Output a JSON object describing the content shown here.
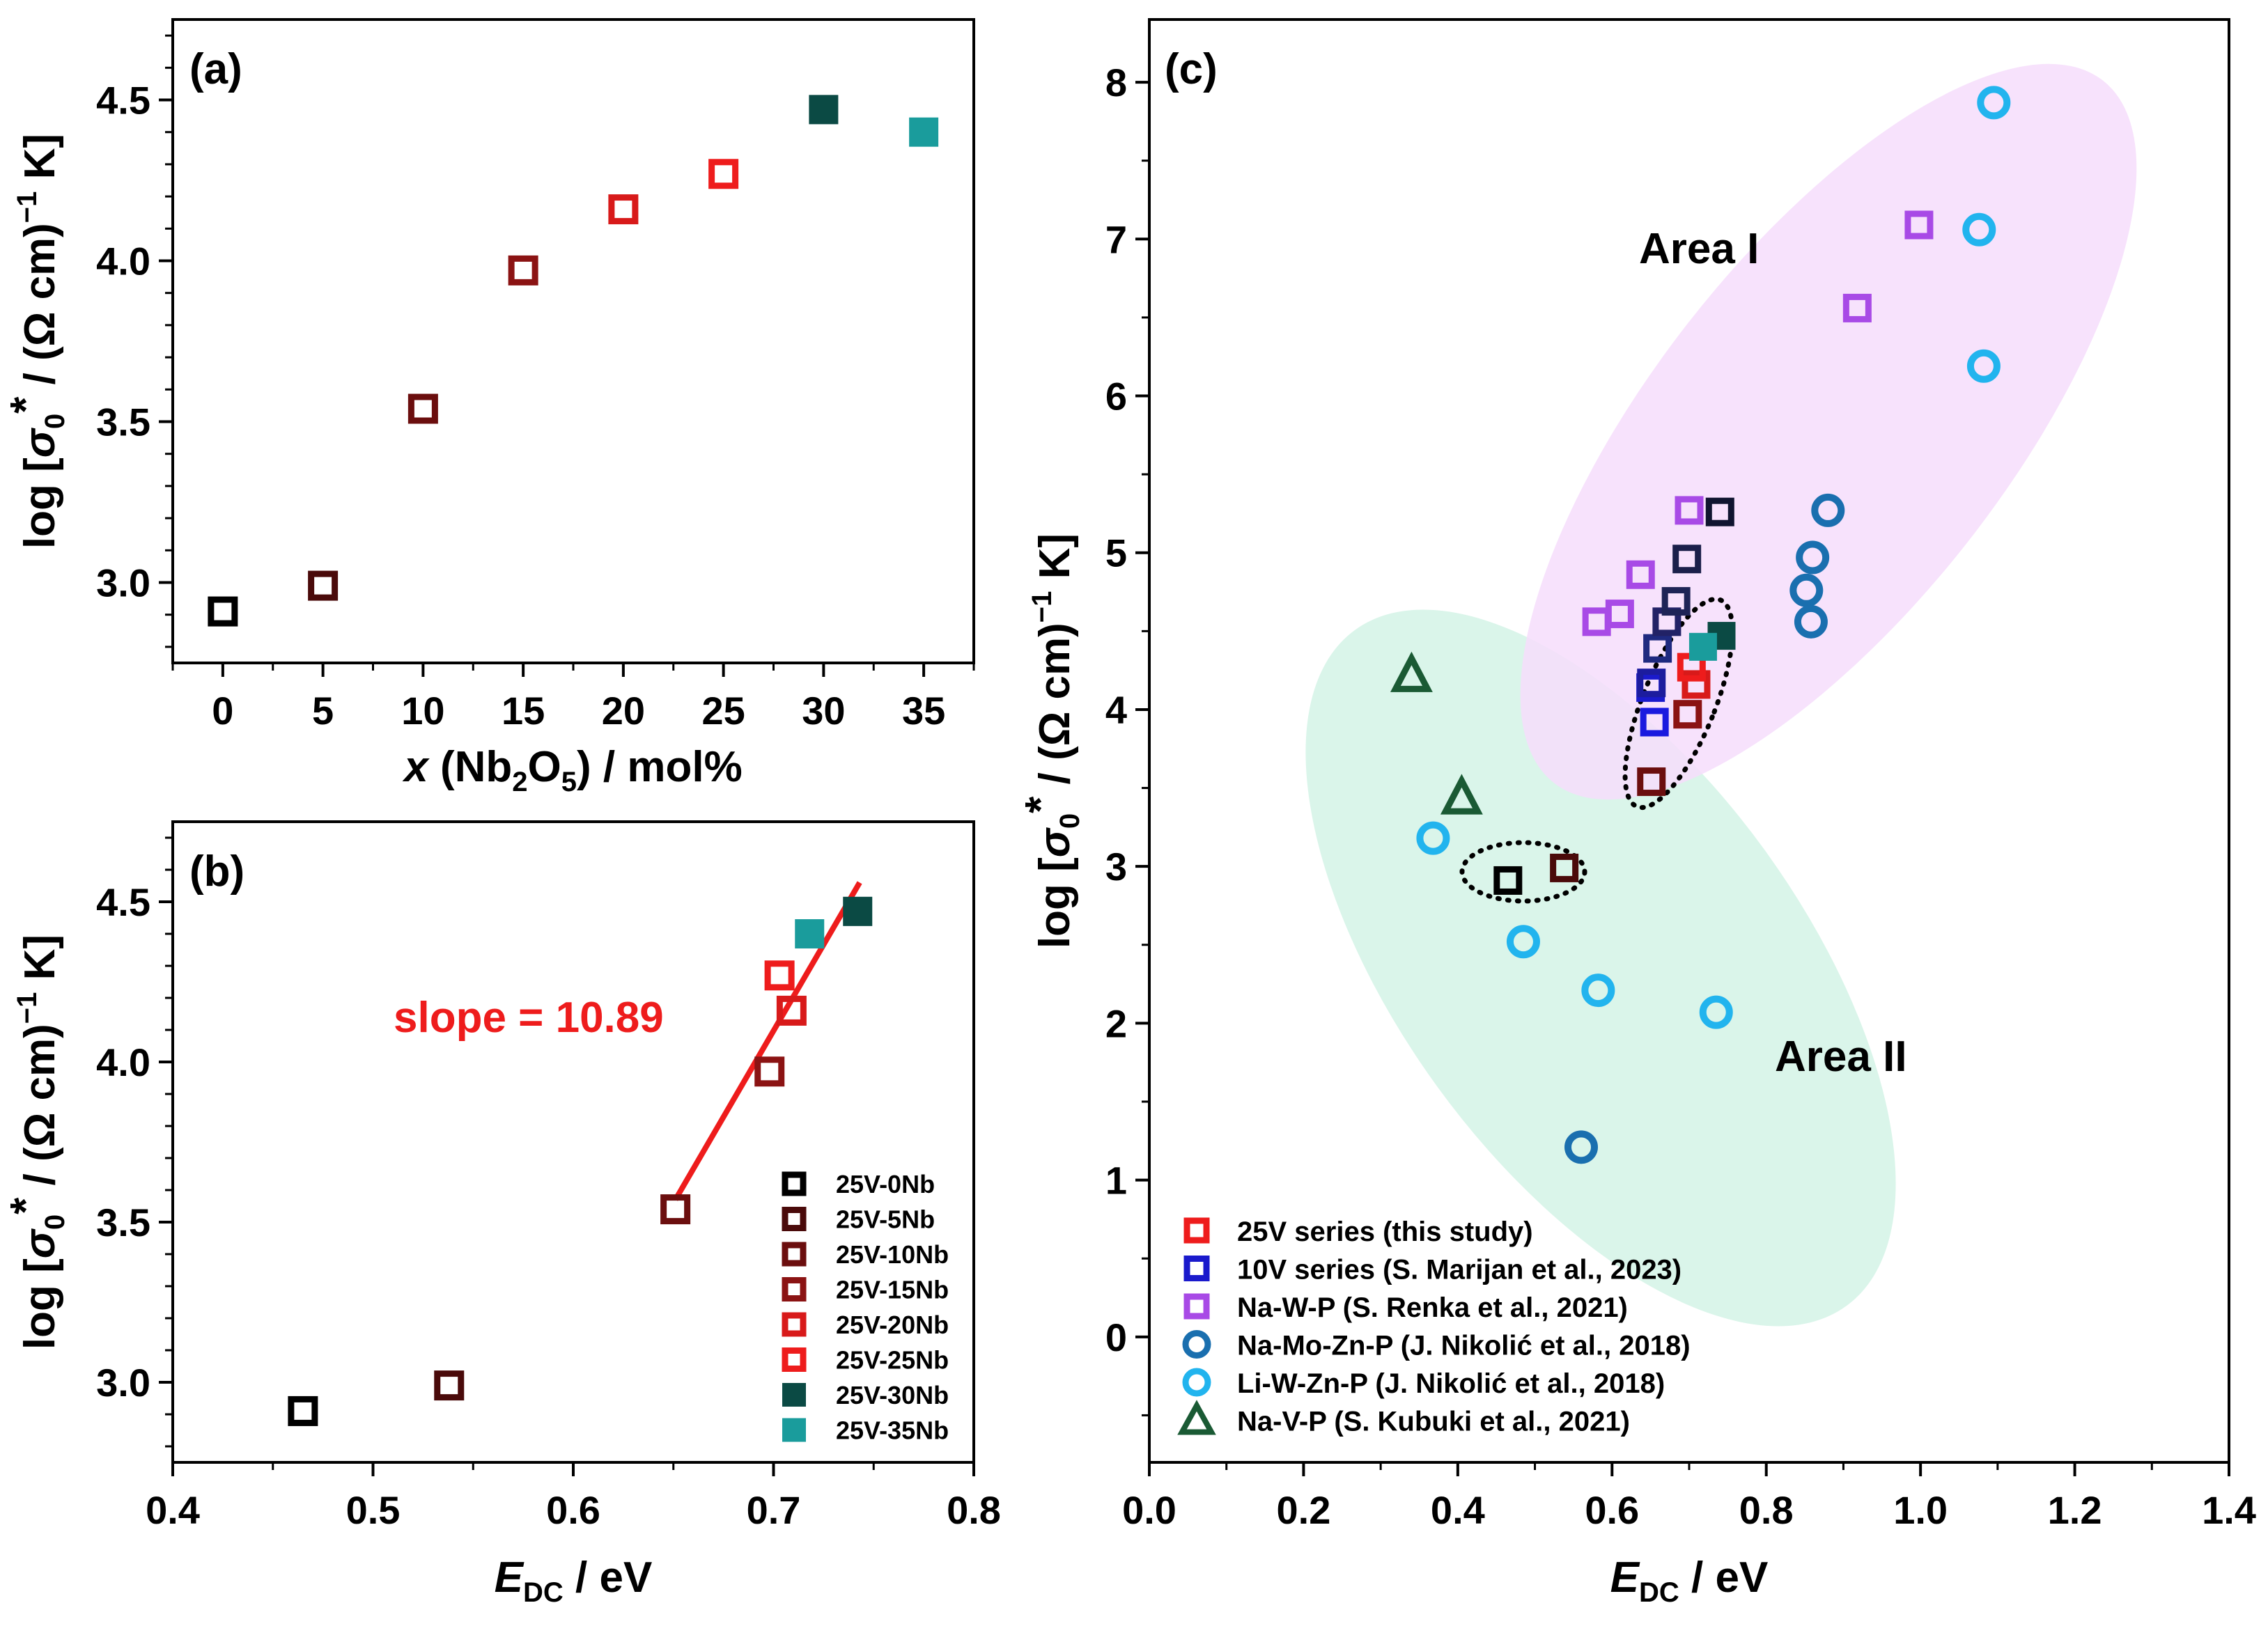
{
  "chart_data": [
    {
      "panel": "(a)",
      "type": "scatter",
      "xlabel": "x (Nb2O5) / mol%",
      "ylabel": "log [σ0* / (Ω cm)−1 K]",
      "xlim": [
        -2.5,
        37.5
      ],
      "ylim": [
        2.75,
        4.75
      ],
      "xticks": [
        "0",
        "5",
        "10",
        "15",
        "20",
        "25",
        "30",
        "35"
      ],
      "yticks": [
        "3.0",
        "3.5",
        "4.0",
        "4.5"
      ],
      "series": [
        {
          "name": "25V-0Nb",
          "x": 0,
          "y": 2.91,
          "color": "#000000",
          "filled": false
        },
        {
          "name": "25V-5Nb",
          "x": 5,
          "y": 2.99,
          "color": "#4a0a0a",
          "filled": false
        },
        {
          "name": "25V-10Nb",
          "x": 10,
          "y": 3.54,
          "color": "#6b0e0e",
          "filled": false
        },
        {
          "name": "25V-15Nb",
          "x": 15,
          "y": 3.97,
          "color": "#8b1313",
          "filled": false
        },
        {
          "name": "25V-20Nb",
          "x": 20,
          "y": 4.16,
          "color": "#d81a1a",
          "filled": false
        },
        {
          "name": "25V-25Nb",
          "x": 25,
          "y": 4.27,
          "color": "#ee1c1c",
          "filled": false
        },
        {
          "name": "25V-30Nb",
          "x": 30,
          "y": 4.47,
          "color": "#0b4a44",
          "filled": true
        },
        {
          "name": "25V-35Nb",
          "x": 35,
          "y": 4.4,
          "color": "#1a9c9c",
          "filled": true
        }
      ]
    },
    {
      "panel": "(b)",
      "type": "scatter",
      "xlabel": "EDC / eV",
      "ylabel": "log [σ0* / (Ω cm)−1 K]",
      "xlim": [
        0.4,
        0.8
      ],
      "ylim": [
        2.75,
        4.75
      ],
      "xticks": [
        "0.4",
        "0.5",
        "0.6",
        "0.7",
        "0.8"
      ],
      "yticks": [
        "3.0",
        "3.5",
        "4.0",
        "4.5"
      ],
      "annotation": "slope = 10.89",
      "fit_line": {
        "x": [
          0.651,
          0.743
        ],
        "y": [
          3.57,
          4.56
        ],
        "color": "#ee1c1c"
      },
      "series": [
        {
          "name": "25V-0Nb",
          "x": 0.465,
          "y": 2.91,
          "color": "#000000",
          "filled": false
        },
        {
          "name": "25V-5Nb",
          "x": 0.538,
          "y": 2.99,
          "color": "#4a0a0a",
          "filled": false
        },
        {
          "name": "25V-10Nb",
          "x": 0.651,
          "y": 3.54,
          "color": "#6b0e0e",
          "filled": false
        },
        {
          "name": "25V-15Nb",
          "x": 0.698,
          "y": 3.97,
          "color": "#8b1313",
          "filled": false
        },
        {
          "name": "25V-20Nb",
          "x": 0.709,
          "y": 4.16,
          "color": "#d81a1a",
          "filled": false
        },
        {
          "name": "25V-25Nb",
          "x": 0.703,
          "y": 4.27,
          "color": "#ee1c1c",
          "filled": false
        },
        {
          "name": "25V-30Nb",
          "x": 0.742,
          "y": 4.47,
          "color": "#0b4a44",
          "filled": true
        },
        {
          "name": "25V-35Nb",
          "x": 0.718,
          "y": 4.4,
          "color": "#1a9c9c",
          "filled": true
        }
      ],
      "legend": [
        "25V-0Nb",
        "25V-5Nb",
        "25V-10Nb",
        "25V-15Nb",
        "25V-20Nb",
        "25V-25Nb",
        "25V-30Nb",
        "25V-35Nb"
      ]
    },
    {
      "panel": "(c)",
      "type": "scatter",
      "xlabel": "EDC / eV",
      "ylabel": "log [σ0* / (Ω cm)−1 K]",
      "xlim": [
        0.0,
        1.4
      ],
      "ylim": [
        -0.8,
        8.4
      ],
      "xticks": [
        "0.0",
        "0.2",
        "0.4",
        "0.6",
        "0.8",
        "1.0",
        "1.2",
        "1.4"
      ],
      "yticks": [
        "0",
        "1",
        "2",
        "3",
        "4",
        "5",
        "6",
        "7",
        "8"
      ],
      "areas": [
        {
          "label": "Area I",
          "color": "#f6ddfb",
          "cx": 0.95,
          "cy": 5.2
        },
        {
          "label": "Area II",
          "color": "#d3f3e6",
          "cx": 0.56,
          "cy": 2.4
        }
      ],
      "series": [
        {
          "name": "25V series (this study)",
          "marker": "square",
          "color": "#ee1c1c",
          "filled": false,
          "x": [
            0.465,
            0.538,
            0.651,
            0.698,
            0.709,
            0.703,
            0.742,
            0.718
          ],
          "y": [
            2.91,
            2.99,
            3.54,
            3.97,
            4.16,
            4.27,
            4.47,
            4.4
          ],
          "point_colors": [
            "#000000",
            "#4a0a0a",
            "#6b0e0e",
            "#8b1313",
            "#d81a1a",
            "#ee1c1c",
            "#0b4a44",
            "#1a9c9c"
          ],
          "point_filled": [
            false,
            false,
            false,
            false,
            false,
            false,
            true,
            true
          ]
        },
        {
          "name": "10V series (S. Marijan et al., 2023)",
          "marker": "square",
          "color": "#1a1acc",
          "filled": false,
          "x": [
            0.655,
            0.65,
            0.651,
            0.659,
            0.671,
            0.683,
            0.697,
            0.74
          ],
          "y": [
            3.92,
            4.14,
            4.17,
            4.39,
            4.56,
            4.69,
            4.96,
            5.26
          ],
          "point_colors": [
            "#1a1adf",
            "#1a1acc",
            "#1c1c9e",
            "#1f2a80",
            "#222266",
            "#1e2456",
            "#1b1f4a",
            "#101530"
          ]
        },
        {
          "name": "Na-W-P (S. Renka et al., 2021)",
          "marker": "square",
          "color": "#a84ae6",
          "filled": false,
          "x": [
            0.58,
            0.61,
            0.637,
            0.7,
            0.918,
            0.998
          ],
          "y": [
            4.56,
            4.61,
            4.86,
            5.27,
            6.56,
            7.09
          ]
        },
        {
          "name": "Na-Mo-Zn-P (J. Nikolić et al., 2018)",
          "marker": "circle",
          "color": "#1a6faf",
          "filled": false,
          "x": [
            0.56,
            0.852,
            0.858,
            0.86,
            0.88
          ],
          "y": [
            1.21,
            4.76,
            4.56,
            4.97,
            5.27
          ]
        },
        {
          "name": "Li-W-Zn-P (J. Nikolić et al., 2018)",
          "marker": "circle",
          "color": "#22b4ee",
          "filled": false,
          "x": [
            0.368,
            0.485,
            0.582,
            0.735,
            1.076,
            1.082,
            1.095
          ],
          "y": [
            3.18,
            2.52,
            2.21,
            2.07,
            7.06,
            6.19,
            7.87
          ]
        },
        {
          "name": "Na-V-P (S. Kubuki et al., 2021)",
          "marker": "triangle",
          "color": "#1a5a34",
          "filled": false,
          "x": [
            0.34,
            0.405
          ],
          "y": [
            4.22,
            3.44
          ]
        }
      ]
    }
  ]
}
